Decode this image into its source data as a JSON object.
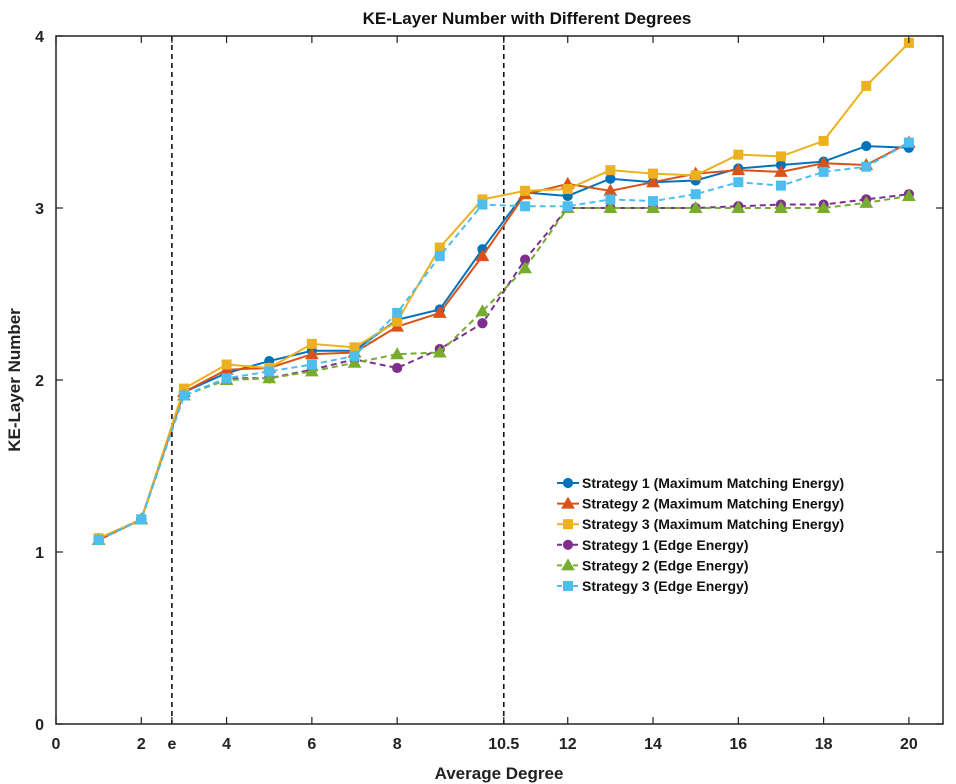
{
  "chart_data": {
    "type": "line",
    "title": "KE-Layer Number with Different Degrees",
    "xlabel": "Average Degree",
    "ylabel": "KE-Layer Number",
    "xlim": [
      0,
      20.8
    ],
    "ylim": [
      0,
      4
    ],
    "xticks": [
      {
        "value": 0,
        "label": "0"
      },
      {
        "value": 2,
        "label": "2"
      },
      {
        "value": 2.718,
        "label": "e"
      },
      {
        "value": 4,
        "label": "4"
      },
      {
        "value": 6,
        "label": "6"
      },
      {
        "value": 8,
        "label": "8"
      },
      {
        "value": 10.5,
        "label": "10.5"
      },
      {
        "value": 12,
        "label": "12"
      },
      {
        "value": 14,
        "label": "14"
      },
      {
        "value": 16,
        "label": "16"
      },
      {
        "value": 18,
        "label": "18"
      },
      {
        "value": 20,
        "label": "20"
      }
    ],
    "yticks": [
      {
        "value": 0,
        "label": "0"
      },
      {
        "value": 1,
        "label": "1"
      },
      {
        "value": 2,
        "label": "2"
      },
      {
        "value": 3,
        "label": "3"
      },
      {
        "value": 4,
        "label": "4"
      }
    ],
    "vlines": [
      2.718,
      10.5
    ],
    "grid": false,
    "legend_position": "lower-right",
    "x": [
      1,
      2,
      3,
      4,
      5,
      6,
      7,
      8,
      9,
      10,
      11,
      12,
      13,
      14,
      15,
      16,
      17,
      18,
      19,
      20
    ],
    "series": [
      {
        "name": "Strategy 1 (Maximum Matching Energy)",
        "color": "#0072BD",
        "marker": "circle",
        "dash": false,
        "values": [
          1.07,
          1.19,
          1.93,
          2.04,
          2.11,
          2.17,
          2.17,
          2.35,
          2.41,
          2.76,
          3.09,
          3.07,
          3.17,
          3.15,
          3.16,
          3.23,
          3.25,
          3.27,
          3.36,
          3.35
        ]
      },
      {
        "name": "Strategy 2 (Maximum Matching Energy)",
        "color": "#D95319",
        "marker": "triangle",
        "dash": false,
        "values": [
          1.07,
          1.19,
          1.93,
          2.06,
          2.07,
          2.15,
          2.16,
          2.31,
          2.39,
          2.72,
          3.08,
          3.14,
          3.1,
          3.15,
          3.2,
          3.22,
          3.21,
          3.26,
          3.25,
          3.38
        ]
      },
      {
        "name": "Strategy 3 (Maximum Matching Energy)",
        "color": "#EDB120",
        "marker": "square",
        "dash": false,
        "values": [
          1.08,
          1.19,
          1.95,
          2.09,
          2.07,
          2.21,
          2.19,
          2.34,
          2.77,
          3.05,
          3.1,
          3.11,
          3.22,
          3.2,
          3.19,
          3.31,
          3.3,
          3.39,
          3.71,
          3.96
        ]
      },
      {
        "name": "Strategy 1 (Edge Energy)",
        "color": "#7E2F8E",
        "marker": "circle",
        "dash": true,
        "values": [
          1.07,
          1.19,
          1.91,
          2.01,
          2.01,
          2.06,
          2.12,
          2.07,
          2.18,
          2.33,
          2.7,
          3.0,
          3.0,
          3.0,
          3.0,
          3.01,
          3.02,
          3.02,
          3.05,
          3.08
        ]
      },
      {
        "name": "Strategy 2 (Edge Energy)",
        "color": "#77AC30",
        "marker": "triangle",
        "dash": true,
        "values": [
          1.07,
          1.19,
          1.91,
          2.0,
          2.01,
          2.05,
          2.1,
          2.15,
          2.16,
          2.4,
          2.65,
          3.0,
          3.0,
          3.0,
          3.0,
          3.0,
          3.0,
          3.0,
          3.03,
          3.07
        ]
      },
      {
        "name": "Strategy 3 (Edge Energy)",
        "color": "#4DBEEE",
        "marker": "square",
        "dash": true,
        "values": [
          1.07,
          1.19,
          1.91,
          2.01,
          2.05,
          2.09,
          2.14,
          2.39,
          2.72,
          3.02,
          3.01,
          3.01,
          3.05,
          3.04,
          3.08,
          3.15,
          3.13,
          3.21,
          3.24,
          3.38
        ]
      }
    ]
  }
}
